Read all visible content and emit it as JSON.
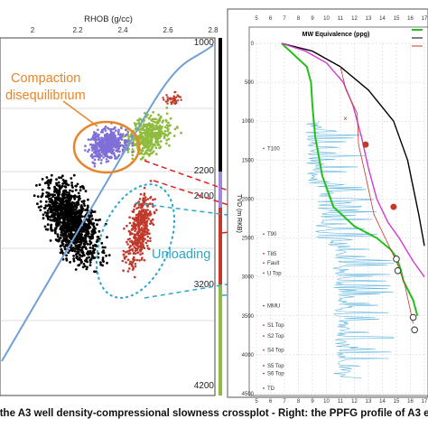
{
  "caption": "ft: the A3 well density-compressional slowness crossplot - Right: the PPFG profile of A3 exp",
  "colors": {
    "compaction": "#e8852b",
    "unloading": "#2aa7c9",
    "trend_line": "#6f9fd3",
    "normal_comp": "#000000",
    "disequilibrium": "#7f6fd6",
    "green_zone": "#8fbc3f",
    "red_unloading": "#c0392b",
    "pp_line": "#22c01a",
    "mw_line": "#d13ad1",
    "lith_curve": "#63b7e0"
  },
  "left_panel": {
    "title": "RHOB (g/cc)",
    "x_ticks": [
      "2",
      "2.2",
      "2.4",
      "2.6",
      "2.8"
    ],
    "depth_labels": [
      "1000",
      "2200",
      "2400",
      "3200",
      "4200"
    ],
    "annotations": {
      "compaction_line1": "Compaction",
      "compaction_line2": "disequilibrium",
      "unloading": "Unloading"
    }
  },
  "right_panel": {
    "title": "MW Equivalence (ppg)",
    "x_ticks": [
      "5",
      "6",
      "7",
      "8",
      "9",
      "10",
      "11",
      "12",
      "13",
      "14",
      "15",
      "16",
      "17"
    ],
    "y_ticks": [
      "0",
      "500",
      "1000",
      "1500",
      "2000",
      "2500",
      "3000",
      "3500",
      "4000",
      "4500"
    ],
    "y_label": "TVD (m RKB)",
    "formation_tops": [
      "T100",
      "T90",
      "T85",
      "Fault",
      "U Top",
      "MMU",
      "S1 Top",
      "S2 Top",
      "S4 Top",
      "S5 Top",
      "S6 Top",
      "TD"
    ]
  },
  "chart_data": [
    {
      "type": "scatter",
      "title": "",
      "xlabel": "RHOB (g/cc)",
      "xlim": [
        2.0,
        2.8
      ],
      "note_clusters": [
        "Compaction disequilibrium",
        "Unloading"
      ]
    },
    {
      "type": "line",
      "title": "MW Equivalence (ppg)",
      "xlabel": "MW Equivalence (ppg)",
      "ylabel": "TVD (m RKB)",
      "xlim": [
        5,
        17
      ],
      "ylim": [
        4500,
        0
      ],
      "series": [
        {
          "color": "#22c01a",
          "x": [
            6.8,
            8.6,
            8.9,
            9.0,
            9.2,
            9.7,
            10.5,
            12.0,
            13.6,
            14.6,
            15.0,
            15.3,
            15.5,
            16.2,
            16.5
          ],
          "y": [
            0,
            300,
            500,
            800,
            1200,
            1700,
            2100,
            2350,
            2500,
            2650,
            2750,
            2900,
            3050,
            3300,
            3500
          ]
        },
        {
          "color": "#000000",
          "x": [
            6.8,
            9.0,
            11.0,
            13.0,
            14.8,
            15.8,
            16.6,
            17.0
          ],
          "y": [
            0,
            100,
            300,
            600,
            1000,
            1500,
            2200,
            2600
          ]
        },
        {
          "color": "#d13ad1",
          "x": [
            6.8,
            8.5,
            10.0,
            11.2,
            11.9,
            12.5,
            13.0,
            13.6,
            14.4,
            15.2,
            16.2,
            17.0
          ],
          "y": [
            0,
            100,
            250,
            500,
            800,
            1200,
            1600,
            2000,
            2300,
            2500,
            2800,
            3000
          ]
        },
        {
          "color": "#c0392b",
          "x": [
            11.0,
            11.4,
            12.2,
            12.3,
            12.8,
            13.4,
            14.2,
            15.0,
            15.6,
            16.2
          ],
          "y": [
            300,
            600,
            900,
            1300,
            1700,
            2200,
            2500,
            2800,
            3100,
            3600
          ]
        }
      ],
      "points": [
        {
          "x": 12.8,
          "y": 1300
        },
        {
          "x": 14.8,
          "y": 2100
        },
        {
          "x": 15.0,
          "y": 2770
        },
        {
          "x": 15.1,
          "y": 2920
        },
        {
          "x": 16.2,
          "y": 3520
        },
        {
          "x": 16.3,
          "y": 3680
        }
      ]
    }
  ]
}
